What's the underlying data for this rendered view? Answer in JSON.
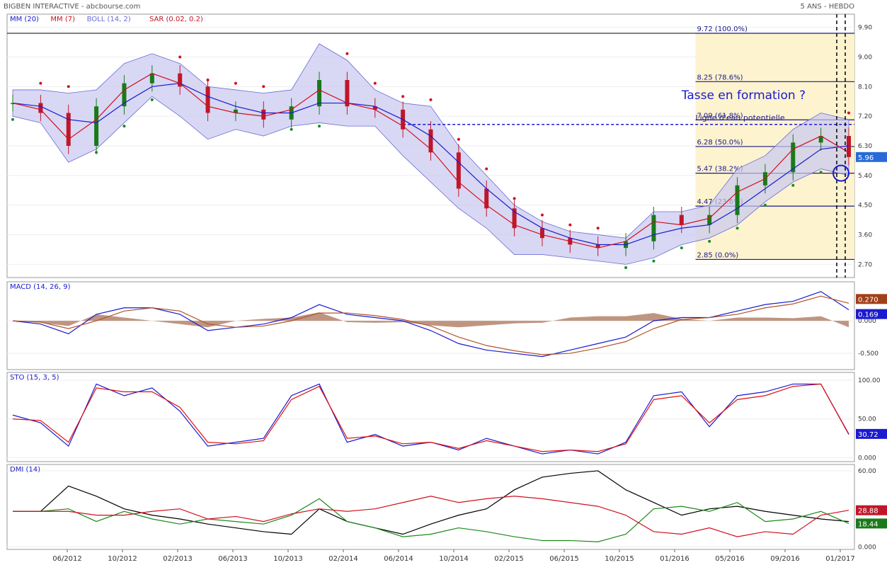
{
  "header": {
    "title": "BIGBEN INTERACTIVE - abcbourse.com",
    "period": "5 ANS - HEBDO"
  },
  "colors": {
    "candle_up": "#1a7a1a",
    "candle_down": "#c0162a",
    "mm20": "#1a1ad0",
    "mm7": "#d01020",
    "boll_fill": "#c8c8f0",
    "boll_line": "#6a6ad8",
    "sar_up": "#1a8a2a",
    "sar_down": "#d01020",
    "fib_zone": "#fdf3cf",
    "macd_line": "#1a1ad0",
    "signal_line": "#b0552a",
    "histogram": "#b07a60",
    "sto_k": "#1a1ad0",
    "sto_d": "#e01010",
    "dmi_adx": "#000000",
    "dmi_plus": "#1a8a1a",
    "dmi_minus": "#d01020"
  },
  "chart_data": [
    {
      "type": "candlestick",
      "panel": "price",
      "legend": [
        "MM (20)",
        "MM (7)",
        "BOLL (14, 2)",
        "SAR (0.02, 0.2)"
      ],
      "yticks": [
        "9.90",
        "9.00",
        "8.10",
        "7.20",
        "6.30",
        "5.40",
        "4.50",
        "3.60",
        "2.70"
      ],
      "ylim": [
        2.3,
        10.3
      ],
      "x": [
        "2012-03",
        "2012-05",
        "2012-07",
        "2012-09",
        "2012-11",
        "2013-01",
        "2013-03",
        "2013-05",
        "2013-07",
        "2013-09",
        "2013-11",
        "2014-01",
        "2014-03",
        "2014-05",
        "2014-07",
        "2014-09",
        "2014-11",
        "2015-01",
        "2015-03",
        "2015-05",
        "2015-07",
        "2015-09",
        "2015-11",
        "2016-01",
        "2016-03",
        "2016-05",
        "2016-07",
        "2016-09",
        "2016-11",
        "2017-01",
        "2017-02"
      ],
      "close": [
        7.6,
        7.3,
        6.3,
        7.5,
        8.2,
        8.5,
        8.1,
        7.3,
        7.4,
        7.1,
        7.5,
        8.3,
        7.5,
        7.4,
        6.8,
        6.1,
        5.0,
        4.4,
        3.8,
        3.5,
        3.3,
        3.2,
        3.4,
        4.2,
        3.9,
        4.2,
        5.1,
        5.5,
        6.4,
        6.6,
        5.96
      ],
      "ma20": [
        7.6,
        7.5,
        7.1,
        7.0,
        7.6,
        8.1,
        8.2,
        7.8,
        7.5,
        7.3,
        7.3,
        7.6,
        7.6,
        7.5,
        7.1,
        6.6,
        5.8,
        5.0,
        4.3,
        3.8,
        3.5,
        3.3,
        3.3,
        3.6,
        3.8,
        3.9,
        4.4,
        5.0,
        5.6,
        6.2,
        6.3
      ],
      "ma7": [
        7.6,
        7.4,
        6.5,
        7.1,
        8.0,
        8.5,
        8.2,
        7.5,
        7.3,
        7.2,
        7.4,
        8.0,
        7.6,
        7.4,
        6.9,
        6.2,
        5.2,
        4.5,
        3.9,
        3.6,
        3.4,
        3.2,
        3.4,
        4.0,
        3.9,
        4.1,
        4.9,
        5.3,
        6.2,
        6.6,
        6.1
      ],
      "boll_upper": [
        8.0,
        8.0,
        7.9,
        8.0,
        8.8,
        9.1,
        8.8,
        8.1,
        8.0,
        7.9,
        8.0,
        9.4,
        8.9,
        8.0,
        7.6,
        7.5,
        6.3,
        5.4,
        4.5,
        4.0,
        3.7,
        3.6,
        3.5,
        4.3,
        4.3,
        4.5,
        5.6,
        6.0,
        6.8,
        7.3,
        7.1
      ],
      "boll_lower": [
        7.2,
        7.0,
        5.8,
        6.2,
        7.0,
        7.8,
        7.2,
        6.5,
        6.8,
        6.6,
        6.9,
        7.0,
        6.9,
        6.9,
        6.0,
        5.2,
        4.4,
        3.8,
        3.0,
        3.0,
        2.9,
        2.8,
        2.7,
        2.9,
        3.3,
        3.5,
        3.9,
        4.6,
        5.2,
        5.6,
        5.4
      ],
      "last_value": "5.96",
      "fibonacci": [
        {
          "label": "9.72 (100.0%)",
          "value": 9.72
        },
        {
          "label": "8.25 (78.6%)",
          "value": 8.25
        },
        {
          "label": "7.09 (61.8%)",
          "value": 7.09
        },
        {
          "label": "6.28 (50.0%)",
          "value": 6.28
        },
        {
          "label": "5.47 (38.2%)",
          "value": 5.47
        },
        {
          "label": "4.47 (23.6%)",
          "value": 4.47
        },
        {
          "label": "2.85 (0.0%)",
          "value": 2.85
        }
      ],
      "annotations": [
        "Tasse en formation ?",
        "Ligne d'eau potentielle"
      ]
    },
    {
      "type": "line",
      "panel": "macd",
      "legend": [
        "MACD (14, 26, 9)"
      ],
      "yticks": [
        "0.000",
        "-0.500"
      ],
      "ylim": [
        -0.75,
        0.6
      ],
      "series": [
        {
          "name": "MACD",
          "values": [
            0.0,
            -0.05,
            -0.2,
            0.1,
            0.2,
            0.2,
            0.1,
            -0.15,
            -0.1,
            -0.05,
            0.05,
            0.25,
            0.1,
            0.05,
            0.0,
            -0.15,
            -0.35,
            -0.45,
            -0.5,
            -0.55,
            -0.45,
            -0.35,
            -0.25,
            0.0,
            0.05,
            0.05,
            0.15,
            0.25,
            0.3,
            0.45,
            0.17
          ]
        },
        {
          "name": "Signal",
          "values": [
            0.0,
            -0.02,
            -0.12,
            0.0,
            0.15,
            0.2,
            0.15,
            -0.05,
            -0.1,
            -0.08,
            0.0,
            0.12,
            0.12,
            0.08,
            0.02,
            -0.08,
            -0.25,
            -0.38,
            -0.46,
            -0.52,
            -0.5,
            -0.42,
            -0.32,
            -0.12,
            0.02,
            0.05,
            0.1,
            0.2,
            0.26,
            0.38,
            0.27
          ]
        }
      ],
      "last_values": [
        "0.270",
        "0.169"
      ]
    },
    {
      "type": "line",
      "panel": "stochastic",
      "legend": [
        "STO (15, 3, 5)"
      ],
      "yticks": [
        "100.00",
        "50.00",
        "0.000"
      ],
      "ylim": [
        -5,
        110
      ],
      "series": [
        {
          "name": "%K",
          "values": [
            55,
            45,
            15,
            95,
            80,
            90,
            60,
            15,
            20,
            25,
            80,
            95,
            20,
            30,
            15,
            20,
            10,
            25,
            15,
            5,
            10,
            5,
            20,
            80,
            85,
            40,
            80,
            85,
            95,
            95,
            30.72
          ]
        },
        {
          "name": "%D",
          "values": [
            50,
            48,
            20,
            90,
            85,
            85,
            65,
            20,
            18,
            22,
            75,
            92,
            25,
            28,
            18,
            20,
            12,
            22,
            15,
            8,
            10,
            8,
            18,
            75,
            80,
            45,
            75,
            80,
            92,
            95,
            30
          ]
        }
      ],
      "last_values": [
        "30.72"
      ]
    },
    {
      "type": "line",
      "panel": "dmi",
      "legend": [
        "DMI (14)"
      ],
      "yticks": [
        "60.00",
        "0.000"
      ],
      "ylim": [
        -2,
        65
      ],
      "series": [
        {
          "name": "ADX",
          "values": [
            28,
            28,
            48,
            40,
            30,
            25,
            22,
            18,
            15,
            12,
            10,
            30,
            20,
            15,
            10,
            18,
            25,
            30,
            45,
            55,
            58,
            60,
            45,
            35,
            25,
            30,
            32,
            28,
            25,
            22,
            20
          ]
        },
        {
          "name": "+DI",
          "values": [
            28,
            28,
            30,
            20,
            28,
            22,
            18,
            22,
            20,
            18,
            25,
            38,
            20,
            15,
            8,
            10,
            15,
            12,
            8,
            5,
            5,
            4,
            10,
            30,
            32,
            28,
            35,
            20,
            22,
            28,
            18.44
          ]
        },
        {
          "name": "-DI",
          "values": [
            28,
            28,
            28,
            25,
            25,
            28,
            30,
            22,
            24,
            20,
            26,
            30,
            28,
            30,
            35,
            40,
            35,
            38,
            40,
            38,
            35,
            32,
            25,
            12,
            10,
            15,
            8,
            12,
            10,
            25,
            28.88
          ]
        }
      ],
      "last_values": [
        "28.88",
        "18.44"
      ]
    }
  ],
  "xaxis_labels": [
    "06/2012",
    "10/2012",
    "02/2013",
    "06/2013",
    "10/2013",
    "02/2014",
    "06/2014",
    "10/2014",
    "02/2015",
    "06/2015",
    "10/2015",
    "01/2016",
    "05/2016",
    "09/2016",
    "01/2017"
  ]
}
